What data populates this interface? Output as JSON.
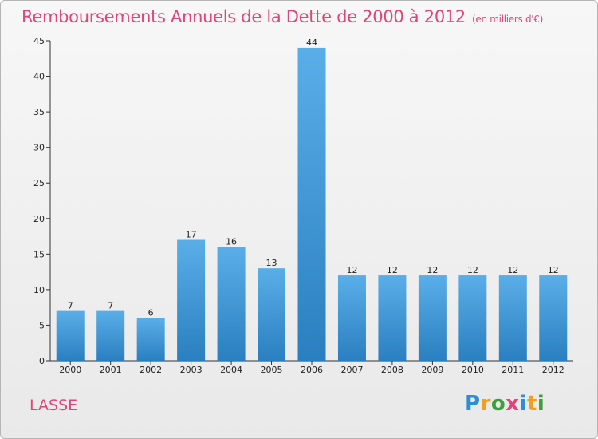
{
  "header": {
    "title": "Remboursements Annuels de la Dette de 2000 à 2012",
    "unit": "(en milliers d'€)"
  },
  "commune": "LASSE",
  "brand": {
    "letters": [
      "P",
      "r",
      "o",
      "x",
      "i",
      "t",
      "i"
    ],
    "colors": [
      "#2a8fd6",
      "#f0a020",
      "#3aa03a",
      "#e0447a",
      "#2a8fd6",
      "#f0a020",
      "#3aa03a"
    ]
  },
  "chart_data": {
    "type": "bar",
    "categories": [
      "2000",
      "2001",
      "2002",
      "2003",
      "2004",
      "2005",
      "2006",
      "2007",
      "2008",
      "2009",
      "2010",
      "2011",
      "2012"
    ],
    "values": [
      7,
      7,
      6,
      17,
      16,
      13,
      44,
      12,
      12,
      12,
      12,
      12,
      12
    ],
    "ylim": [
      0,
      45
    ],
    "yticks": [
      0,
      5,
      10,
      15,
      20,
      25,
      30,
      35,
      40,
      45
    ],
    "grid": false,
    "bar_color_top": "#5aaee8",
    "bar_color_bottom": "#2a7fc0"
  }
}
